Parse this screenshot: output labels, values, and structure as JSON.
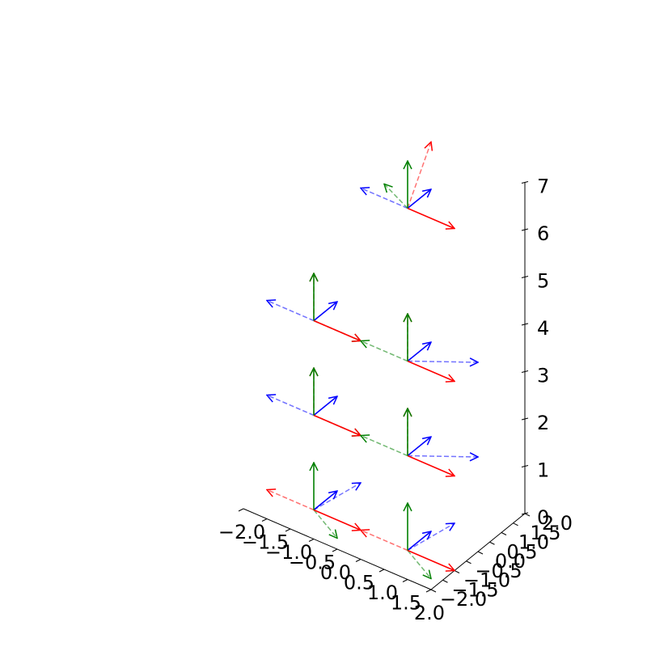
{
  "chart_data": {
    "type": "3d-quiver",
    "title": "",
    "xlabel": "",
    "ylabel": "",
    "zlabel": "",
    "grid": false,
    "xlim": [
      -2.0,
      2.0
    ],
    "ylim": [
      -2.0,
      2.0
    ],
    "zlim": [
      0,
      7
    ],
    "x_ticks": [
      "−2.0",
      "−1.5",
      "−1.0",
      "−0.5",
      "0.0",
      "0.5",
      "1.0",
      "1.5",
      "2.0"
    ],
    "y_ticks": [
      "−2.0",
      "−1.5",
      "−1.0",
      "−0.5",
      "0.0",
      "0.5",
      "1.0",
      "1.5",
      "2.0"
    ],
    "z_ticks": [
      "0",
      "1",
      "2",
      "3",
      "4",
      "5",
      "6",
      "7"
    ],
    "colors": {
      "x_axis_arrow": "#ff0000",
      "y_axis_arrow": "#0000ff",
      "z_axis_arrow": "#008000"
    },
    "frames": [
      {
        "origin": [
          -1,
          -1,
          0
        ],
        "solid": {
          "x": [
            1,
            0,
            0
          ],
          "y": [
            0,
            1,
            0
          ],
          "z": [
            0,
            0,
            1
          ]
        },
        "dashed": {
          "x": [
            -1,
            0,
            0
          ],
          "y": [
            1,
            0,
            1
          ],
          "z": [
            0,
            1,
            -1
          ]
        }
      },
      {
        "origin": [
          1,
          -1,
          0
        ],
        "solid": {
          "x": [
            1,
            0,
            0
          ],
          "y": [
            0,
            1,
            0
          ],
          "z": [
            0,
            0,
            1
          ]
        },
        "dashed": {
          "x": [
            -1,
            0,
            0
          ],
          "y": [
            1,
            0,
            1
          ],
          "z": [
            0,
            1,
            -1
          ]
        }
      },
      {
        "origin": [
          -1,
          -1,
          2
        ],
        "solid": {
          "x": [
            1,
            0,
            0
          ],
          "y": [
            0,
            1,
            0
          ],
          "z": [
            0,
            0,
            1
          ]
        },
        "dashed": {
          "x": [
            0,
            0,
            1
          ],
          "y": [
            -1,
            0,
            0
          ],
          "z": [
            1,
            0,
            0
          ]
        }
      },
      {
        "origin": [
          1,
          -1,
          2
        ],
        "solid": {
          "x": [
            1,
            0,
            0
          ],
          "y": [
            0,
            1,
            0
          ],
          "z": [
            0,
            0,
            1
          ]
        },
        "dashed": {
          "x": [
            0,
            0,
            1
          ],
          "y": [
            1,
            1,
            0
          ],
          "z": [
            -1,
            0,
            0
          ]
        }
      },
      {
        "origin": [
          -1,
          -1,
          4
        ],
        "solid": {
          "x": [
            1,
            0,
            0
          ],
          "y": [
            0,
            1,
            0
          ],
          "z": [
            0,
            0,
            1
          ]
        },
        "dashed": {
          "x": [
            0,
            0,
            1
          ],
          "y": [
            -1,
            0,
            0
          ],
          "z": [
            1,
            0,
            0
          ]
        }
      },
      {
        "origin": [
          1,
          -1,
          4
        ],
        "solid": {
          "x": [
            1,
            0,
            0
          ],
          "y": [
            0,
            1,
            0
          ],
          "z": [
            0,
            0,
            1
          ]
        },
        "dashed": {
          "x": [
            0,
            0,
            1
          ],
          "y": [
            1,
            1,
            0
          ],
          "z": [
            -1,
            0,
            0
          ]
        }
      },
      {
        "origin": [
          0,
          1,
          6
        ],
        "solid": {
          "x": [
            1,
            0,
            0
          ],
          "y": [
            0,
            1,
            0
          ],
          "z": [
            0,
            0,
            1
          ]
        },
        "dashed": {
          "x": [
            0,
            1,
            1
          ],
          "y": [
            -1,
            0,
            0
          ],
          "z": [
            -0.5,
            0,
            0.3
          ]
        }
      }
    ]
  }
}
